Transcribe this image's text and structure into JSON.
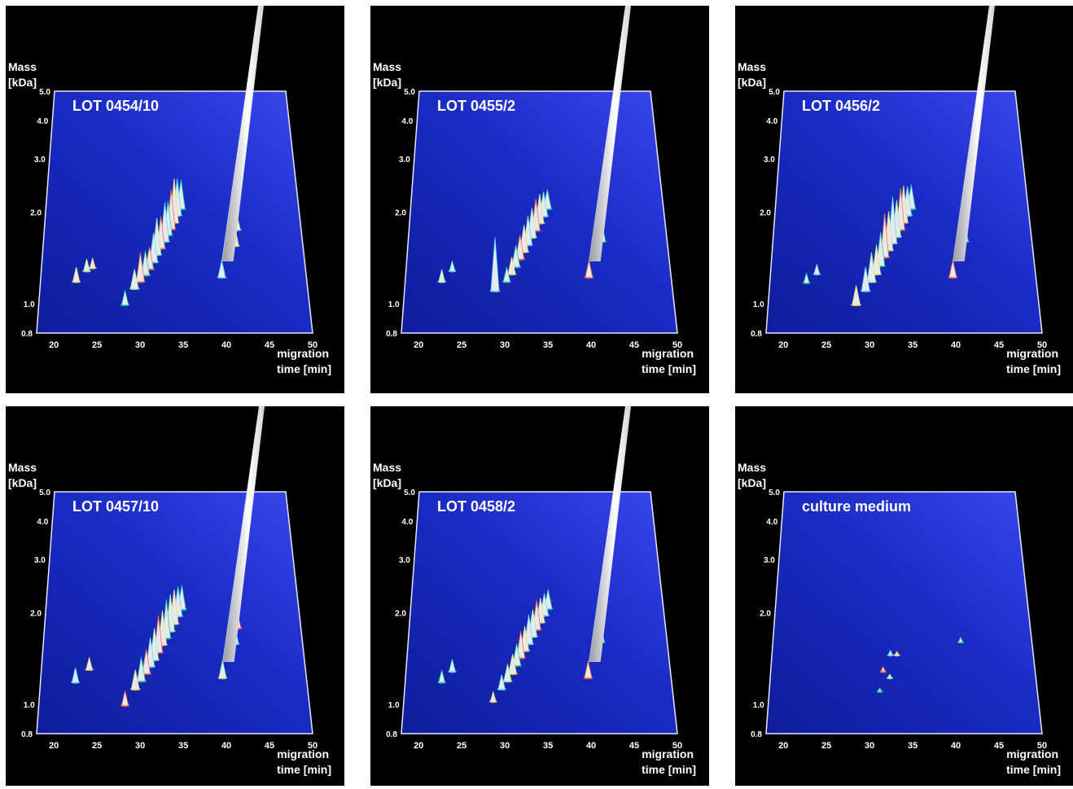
{
  "figure": {
    "y_axis_title": [
      "Mass",
      "[kDa]"
    ],
    "x_axis_title": [
      "migration",
      "time [min]"
    ]
  },
  "chart_data": [
    {
      "type": "3d-surface",
      "title": "LOT 0454/10",
      "xlabel": "migration time [min]",
      "ylabel": "Mass [kDa]",
      "x_ticks": [
        20,
        25,
        30,
        35,
        40,
        45,
        50
      ],
      "y_ticks": [
        "0.8",
        "1.0",
        "2.0",
        "3.0",
        "4.0",
        "5.0"
      ],
      "xlim": [
        18,
        50
      ],
      "ylim": [
        0.8,
        5.0
      ],
      "y_scale": "log",
      "peaks": [
        {
          "x": 22.3,
          "y": 1.18,
          "h": 0.06
        },
        {
          "x": 23.5,
          "y": 1.28,
          "h": 0.05
        },
        {
          "x": 24.2,
          "y": 1.31,
          "h": 0.04
        },
        {
          "x": 28.2,
          "y": 0.99,
          "h": 0.06
        },
        {
          "x": 29.3,
          "y": 1.12,
          "h": 0.08
        },
        {
          "x": 30.0,
          "y": 1.18,
          "h": 0.12
        },
        {
          "x": 30.6,
          "y": 1.24,
          "h": 0.1
        },
        {
          "x": 31.1,
          "y": 1.3,
          "h": 0.09
        },
        {
          "x": 31.6,
          "y": 1.37,
          "h": 0.12
        },
        {
          "x": 32.0,
          "y": 1.45,
          "h": 0.15
        },
        {
          "x": 32.5,
          "y": 1.52,
          "h": 0.13
        },
        {
          "x": 33.0,
          "y": 1.6,
          "h": 0.16
        },
        {
          "x": 33.4,
          "y": 1.68,
          "h": 0.14
        },
        {
          "x": 33.8,
          "y": 1.76,
          "h": 0.16
        },
        {
          "x": 34.2,
          "y": 1.85,
          "h": 0.18
        },
        {
          "x": 34.6,
          "y": 1.95,
          "h": 0.15
        },
        {
          "x": 35.1,
          "y": 2.05,
          "h": 0.12
        },
        {
          "x": 39.8,
          "y": 1.22,
          "h": 0.07
        },
        {
          "x": 40.6,
          "y": 1.38,
          "h": 0.95
        },
        {
          "x": 41.6,
          "y": 1.55,
          "h": 0.08
        },
        {
          "x": 42.0,
          "y": 1.75,
          "h": 0.06
        }
      ]
    },
    {
      "type": "3d-surface",
      "title": "LOT 0455/2",
      "xlabel": "migration time [min]",
      "ylabel": "Mass [kDa]",
      "x_ticks": [
        20,
        25,
        30,
        35,
        40,
        45,
        50
      ],
      "y_ticks": [
        "0.8",
        "1.0",
        "2.0",
        "3.0",
        "4.0",
        "5.0"
      ],
      "xlim": [
        18,
        50
      ],
      "ylim": [
        0.8,
        5.0
      ],
      "y_scale": "log",
      "peaks": [
        {
          "x": 22.4,
          "y": 1.18,
          "h": 0.05
        },
        {
          "x": 23.6,
          "y": 1.28,
          "h": 0.04
        },
        {
          "x": 28.8,
          "y": 1.1,
          "h": 0.22
        },
        {
          "x": 30.2,
          "y": 1.18,
          "h": 0.06
        },
        {
          "x": 30.8,
          "y": 1.25,
          "h": 0.07
        },
        {
          "x": 31.3,
          "y": 1.32,
          "h": 0.09
        },
        {
          "x": 31.8,
          "y": 1.4,
          "h": 0.1
        },
        {
          "x": 32.3,
          "y": 1.48,
          "h": 0.11
        },
        {
          "x": 32.8,
          "y": 1.56,
          "h": 0.12
        },
        {
          "x": 33.3,
          "y": 1.65,
          "h": 0.12
        },
        {
          "x": 33.8,
          "y": 1.74,
          "h": 0.13
        },
        {
          "x": 34.3,
          "y": 1.84,
          "h": 0.12
        },
        {
          "x": 34.8,
          "y": 1.94,
          "h": 0.1
        },
        {
          "x": 35.3,
          "y": 2.05,
          "h": 0.08
        },
        {
          "x": 40.1,
          "y": 1.22,
          "h": 0.07
        },
        {
          "x": 40.9,
          "y": 1.38,
          "h": 0.95
        },
        {
          "x": 41.9,
          "y": 1.6,
          "h": 0.08
        }
      ]
    },
    {
      "type": "3d-surface",
      "title": "LOT 0456/2",
      "xlabel": "migration time [min]",
      "ylabel": "Mass [kDa]",
      "x_ticks": [
        20,
        25,
        30,
        35,
        40,
        45,
        50
      ],
      "y_ticks": [
        "0.8",
        "1.0",
        "2.0",
        "3.0",
        "4.0",
        "5.0"
      ],
      "xlim": [
        18,
        50
      ],
      "ylim": [
        0.8,
        5.0
      ],
      "y_scale": "log",
      "peaks": [
        {
          "x": 22.4,
          "y": 1.17,
          "h": 0.04
        },
        {
          "x": 23.6,
          "y": 1.25,
          "h": 0.04
        },
        {
          "x": 28.4,
          "y": 0.99,
          "h": 0.08
        },
        {
          "x": 29.5,
          "y": 1.1,
          "h": 0.1
        },
        {
          "x": 30.2,
          "y": 1.18,
          "h": 0.12
        },
        {
          "x": 30.8,
          "y": 1.25,
          "h": 0.12
        },
        {
          "x": 31.3,
          "y": 1.33,
          "h": 0.14
        },
        {
          "x": 31.8,
          "y": 1.42,
          "h": 0.18
        },
        {
          "x": 32.3,
          "y": 1.5,
          "h": 0.16
        },
        {
          "x": 32.8,
          "y": 1.58,
          "h": 0.19
        },
        {
          "x": 33.3,
          "y": 1.66,
          "h": 0.15
        },
        {
          "x": 33.8,
          "y": 1.75,
          "h": 0.17
        },
        {
          "x": 34.2,
          "y": 1.85,
          "h": 0.15
        },
        {
          "x": 34.7,
          "y": 1.95,
          "h": 0.12
        },
        {
          "x": 35.2,
          "y": 2.05,
          "h": 0.1
        },
        {
          "x": 40.0,
          "y": 1.22,
          "h": 0.07
        },
        {
          "x": 40.8,
          "y": 1.38,
          "h": 0.95
        },
        {
          "x": 41.7,
          "y": 1.6,
          "h": 0.07
        }
      ]
    },
    {
      "type": "3d-surface",
      "title": "LOT 0457/10",
      "xlabel": "migration time [min]",
      "ylabel": "Mass [kDa]",
      "x_ticks": [
        20,
        25,
        30,
        35,
        40,
        45,
        50
      ],
      "y_ticks": [
        "0.8",
        "1.0",
        "2.0",
        "3.0",
        "4.0",
        "5.0"
      ],
      "xlim": [
        18,
        50
      ],
      "ylim": [
        0.8,
        5.0
      ],
      "y_scale": "log",
      "peaks": [
        {
          "x": 22.2,
          "y": 1.18,
          "h": 0.06
        },
        {
          "x": 23.8,
          "y": 1.3,
          "h": 0.05
        },
        {
          "x": 28.2,
          "y": 0.99,
          "h": 0.06
        },
        {
          "x": 29.4,
          "y": 1.12,
          "h": 0.08
        },
        {
          "x": 30.1,
          "y": 1.19,
          "h": 0.1
        },
        {
          "x": 30.7,
          "y": 1.26,
          "h": 0.1
        },
        {
          "x": 31.2,
          "y": 1.33,
          "h": 0.12
        },
        {
          "x": 31.7,
          "y": 1.4,
          "h": 0.13
        },
        {
          "x": 32.2,
          "y": 1.48,
          "h": 0.15
        },
        {
          "x": 32.7,
          "y": 1.57,
          "h": 0.14
        },
        {
          "x": 33.2,
          "y": 1.65,
          "h": 0.16
        },
        {
          "x": 33.7,
          "y": 1.74,
          "h": 0.15
        },
        {
          "x": 34.2,
          "y": 1.84,
          "h": 0.14
        },
        {
          "x": 34.7,
          "y": 1.95,
          "h": 0.12
        },
        {
          "x": 35.2,
          "y": 2.05,
          "h": 0.1
        },
        {
          "x": 39.9,
          "y": 1.22,
          "h": 0.07
        },
        {
          "x": 40.7,
          "y": 1.38,
          "h": 0.98
        },
        {
          "x": 41.6,
          "y": 1.58,
          "h": 0.08
        },
        {
          "x": 42.1,
          "y": 1.78,
          "h": 0.06
        }
      ]
    },
    {
      "type": "3d-surface",
      "title": "LOT 0458/2",
      "xlabel": "migration time [min]",
      "ylabel": "Mass [kDa]",
      "x_ticks": [
        20,
        25,
        30,
        35,
        40,
        45,
        50
      ],
      "y_ticks": [
        "0.8",
        "1.0",
        "2.0",
        "3.0",
        "4.0",
        "5.0"
      ],
      "xlim": [
        18,
        50
      ],
      "ylim": [
        0.8,
        5.0
      ],
      "y_scale": "log",
      "peaks": [
        {
          "x": 22.4,
          "y": 1.18,
          "h": 0.05
        },
        {
          "x": 23.6,
          "y": 1.28,
          "h": 0.05
        },
        {
          "x": 28.6,
          "y": 1.02,
          "h": 0.04
        },
        {
          "x": 29.6,
          "y": 1.12,
          "h": 0.06
        },
        {
          "x": 30.3,
          "y": 1.19,
          "h": 0.07
        },
        {
          "x": 30.9,
          "y": 1.26,
          "h": 0.08
        },
        {
          "x": 31.4,
          "y": 1.34,
          "h": 0.09
        },
        {
          "x": 31.9,
          "y": 1.42,
          "h": 0.11
        },
        {
          "x": 32.4,
          "y": 1.5,
          "h": 0.1
        },
        {
          "x": 32.9,
          "y": 1.58,
          "h": 0.12
        },
        {
          "x": 33.4,
          "y": 1.67,
          "h": 0.11
        },
        {
          "x": 33.9,
          "y": 1.76,
          "h": 0.12
        },
        {
          "x": 34.4,
          "y": 1.86,
          "h": 0.1
        },
        {
          "x": 34.9,
          "y": 1.96,
          "h": 0.09
        },
        {
          "x": 35.4,
          "y": 2.06,
          "h": 0.08
        },
        {
          "x": 40.0,
          "y": 1.22,
          "h": 0.07
        },
        {
          "x": 40.9,
          "y": 1.38,
          "h": 0.95
        },
        {
          "x": 41.8,
          "y": 1.6,
          "h": 0.07
        }
      ]
    },
    {
      "type": "3d-surface",
      "title": "culture medium",
      "xlabel": "migration time [min]",
      "ylabel": "Mass [kDa]",
      "x_ticks": [
        20,
        25,
        30,
        35,
        40,
        45,
        50
      ],
      "y_ticks": [
        "0.8",
        "1.0",
        "2.0",
        "3.0",
        "4.0",
        "5.0"
      ],
      "xlim": [
        18,
        50
      ],
      "ylim": [
        0.8,
        5.0
      ],
      "y_scale": "log",
      "peaks": [
        {
          "x": 31.2,
          "y": 1.1,
          "h": 0.015
        },
        {
          "x": 31.6,
          "y": 1.28,
          "h": 0.02
        },
        {
          "x": 32.4,
          "y": 1.22,
          "h": 0.015
        },
        {
          "x": 32.5,
          "y": 1.45,
          "h": 0.02
        },
        {
          "x": 33.3,
          "y": 1.45,
          "h": 0.015
        },
        {
          "x": 41.2,
          "y": 1.6,
          "h": 0.02
        }
      ]
    }
  ]
}
